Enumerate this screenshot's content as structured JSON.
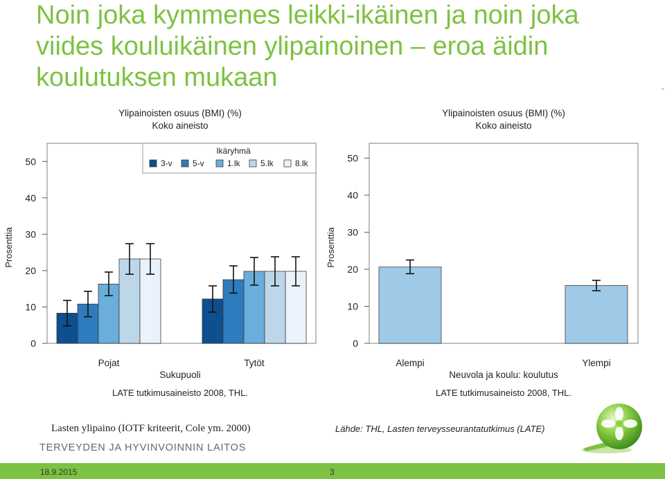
{
  "slide": {
    "title": "Noin joka kymmenes leikki-ikäinen ja noin joka viides kouluikäinen ylipainoinen – eroa äidin koulutuksen mukaan",
    "caption_left": "Lasten ylipaino (IOTF kriteerit, Cole ym. 2000)",
    "caption_right": "Lähde: THL, Lasten terveysseurantatutkimus (LATE)",
    "org_name": "TERVEYDEN JA HYVINVOINNIN LAITOS",
    "footer_date": "18.9.2015",
    "footer_page": "3",
    "colors": {
      "title": "#7dc242",
      "footer_bar": "#7dc242"
    }
  },
  "chart_data": [
    {
      "type": "bar",
      "title": "Ylipainoisten osuus (BMI) (%)",
      "subtitle": "Koko aineisto",
      "xlabel": "Sukupuoli",
      "ylabel": "Prosenttia",
      "ylim": [
        0,
        55
      ],
      "yticks": [
        0,
        10,
        20,
        30,
        40,
        50
      ],
      "categories": [
        "Pojat",
        "Tytöt"
      ],
      "legend_title": "Ikäryhmä",
      "legend_position": "top-right",
      "source_note": "LATE tutkimusaineisto 2008, THL.",
      "series": [
        {
          "name": "3-v",
          "color": "#0d4f8f",
          "values": [
            8.3,
            12.2
          ],
          "error_low": [
            4.8,
            8.6
          ],
          "error_high": [
            11.8,
            15.8
          ]
        },
        {
          "name": "5-v",
          "color": "#2e7bbd",
          "values": [
            10.8,
            17.5
          ],
          "error_low": [
            7.3,
            13.8
          ],
          "error_high": [
            14.3,
            21.3
          ]
        },
        {
          "name": "1.lk",
          "color": "#6aaedb",
          "values": [
            16.3,
            19.8
          ],
          "error_low": [
            13.1,
            16.0
          ],
          "error_high": [
            19.6,
            23.6
          ]
        },
        {
          "name": "5.lk",
          "color": "#bdd7ea",
          "values": [
            23.2,
            19.8
          ],
          "error_low": [
            19.0,
            15.8
          ],
          "error_high": [
            27.4,
            23.8
          ]
        },
        {
          "name": "8.lk",
          "color": "#eaf2fb",
          "values": [
            23.2,
            19.8
          ],
          "error_low": [
            19.0,
            15.8
          ],
          "error_high": [
            27.4,
            23.8
          ]
        }
      ]
    },
    {
      "type": "bar",
      "title": "Ylipainoisten osuus (BMI) (%)",
      "subtitle": "Koko aineisto",
      "xlabel": "Neuvola ja koulu: koulutus",
      "ylabel": "Prosenttia",
      "ylim": [
        0,
        54
      ],
      "yticks": [
        0,
        10,
        20,
        30,
        40,
        50
      ],
      "categories": [
        "Alempi",
        "Ylempi"
      ],
      "source_note": "LATE tutkimusaineisto 2008, THL.",
      "series": [
        {
          "color": "#9ecae8",
          "values": [
            20.6,
            15.6
          ],
          "error_low": [
            18.8,
            14.2
          ],
          "error_high": [
            22.5,
            17.0
          ]
        }
      ]
    }
  ]
}
